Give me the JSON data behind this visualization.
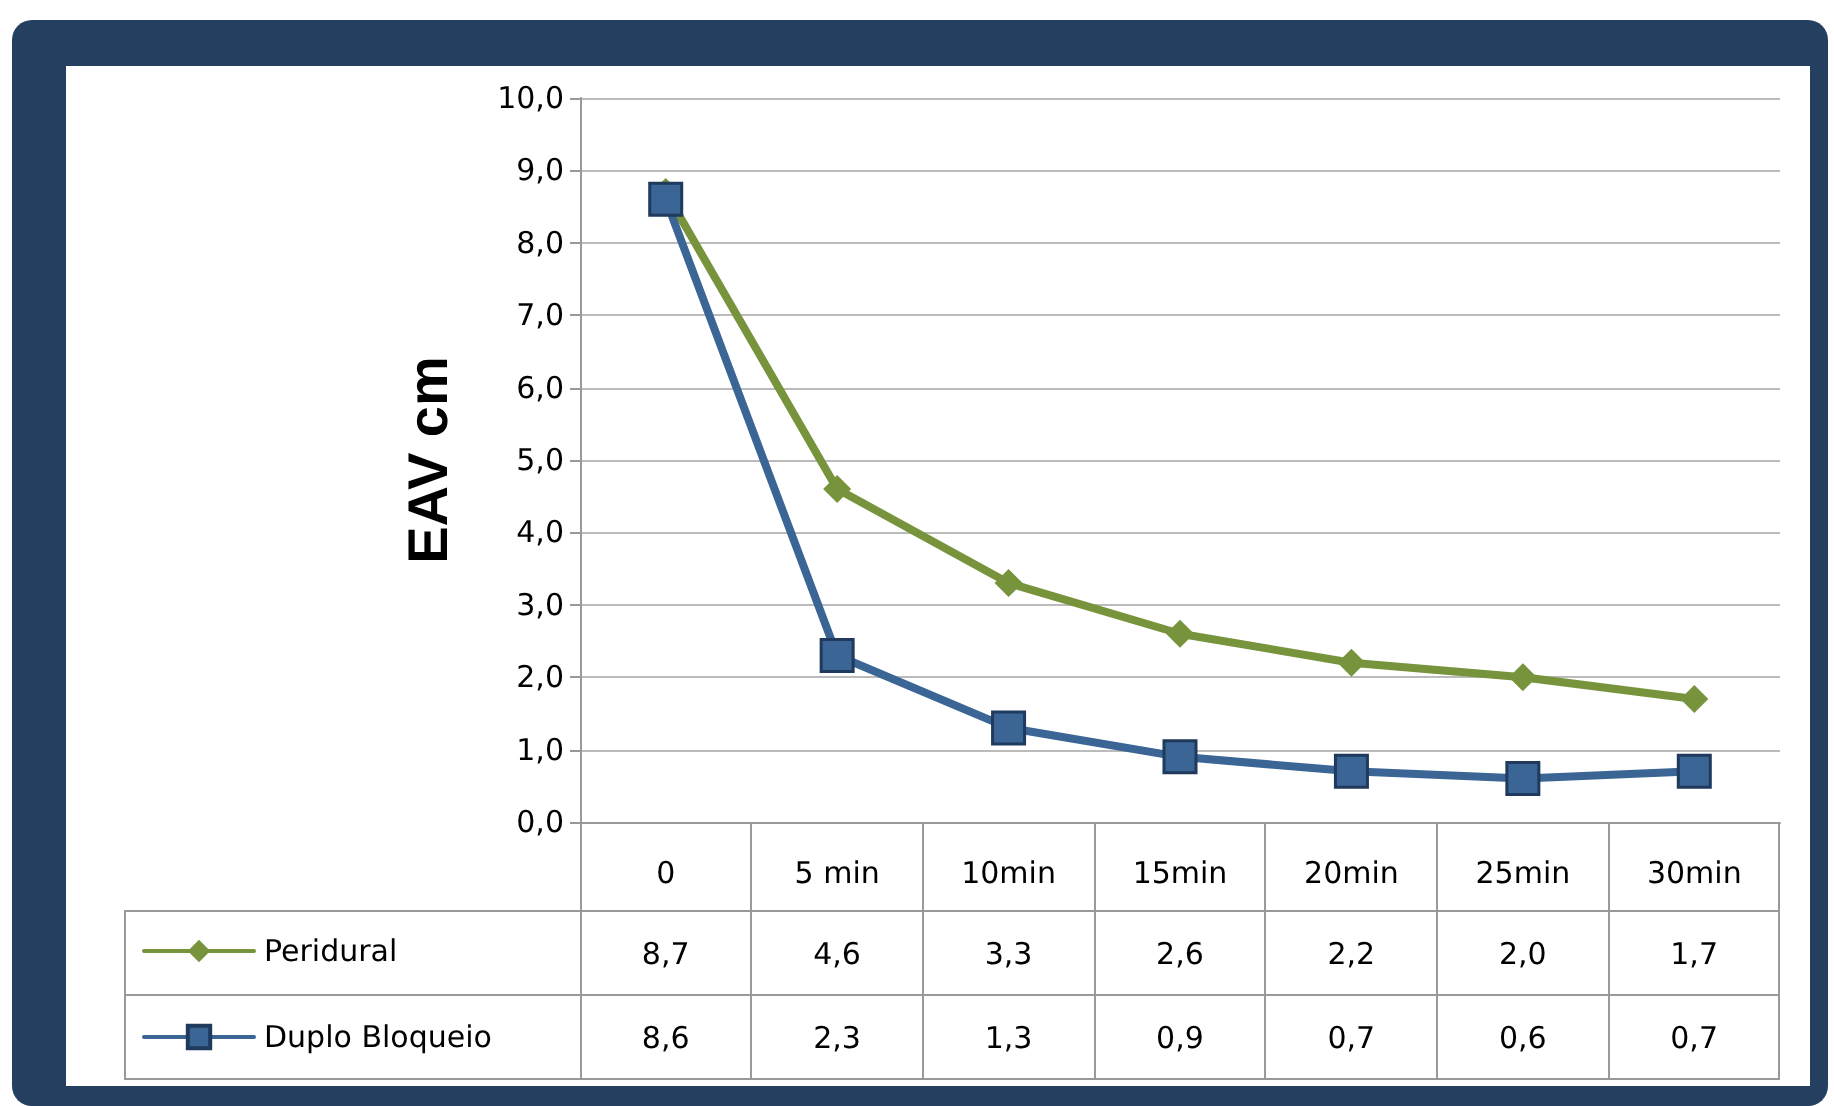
{
  "chart_data": {
    "type": "line",
    "ylabel": "EAV cm",
    "categories": [
      "0",
      "5 min",
      "10min",
      "15min",
      "20min",
      "25min",
      "30min"
    ],
    "series": [
      {
        "name": "Peridural",
        "color": "#77933c",
        "marker": "diamond",
        "values": [
          8.7,
          4.6,
          3.3,
          2.6,
          2.2,
          2.0,
          1.7
        ],
        "value_labels": [
          "8,7",
          "4,6",
          "3,3",
          "2,6",
          "2,2",
          "2,0",
          "1,7"
        ]
      },
      {
        "name": "Duplo Bloqueio",
        "color": "#3a6595",
        "marker": "square",
        "values": [
          8.6,
          2.3,
          1.3,
          0.9,
          0.7,
          0.6,
          0.7
        ],
        "value_labels": [
          "8,6",
          "2,3",
          "1,3",
          "0,9",
          "0,7",
          "0,6",
          "0,7"
        ]
      }
    ],
    "ylim": [
      0,
      10
    ],
    "yticks": [
      {
        "value": 0,
        "label": "0,0"
      },
      {
        "value": 1,
        "label": "1,0"
      },
      {
        "value": 2,
        "label": "2,0"
      },
      {
        "value": 3,
        "label": "3,0"
      },
      {
        "value": 4,
        "label": "4,0"
      },
      {
        "value": 5,
        "label": "5,0"
      },
      {
        "value": 6,
        "label": "6,0"
      },
      {
        "value": 7,
        "label": "7,0"
      },
      {
        "value": 8,
        "label": "8,0"
      },
      {
        "value": 9,
        "label": "9,0"
      },
      {
        "value": 10,
        "label": "10,0"
      }
    ],
    "grid": "y",
    "legend": "bottom left",
    "line_style": "solid"
  }
}
